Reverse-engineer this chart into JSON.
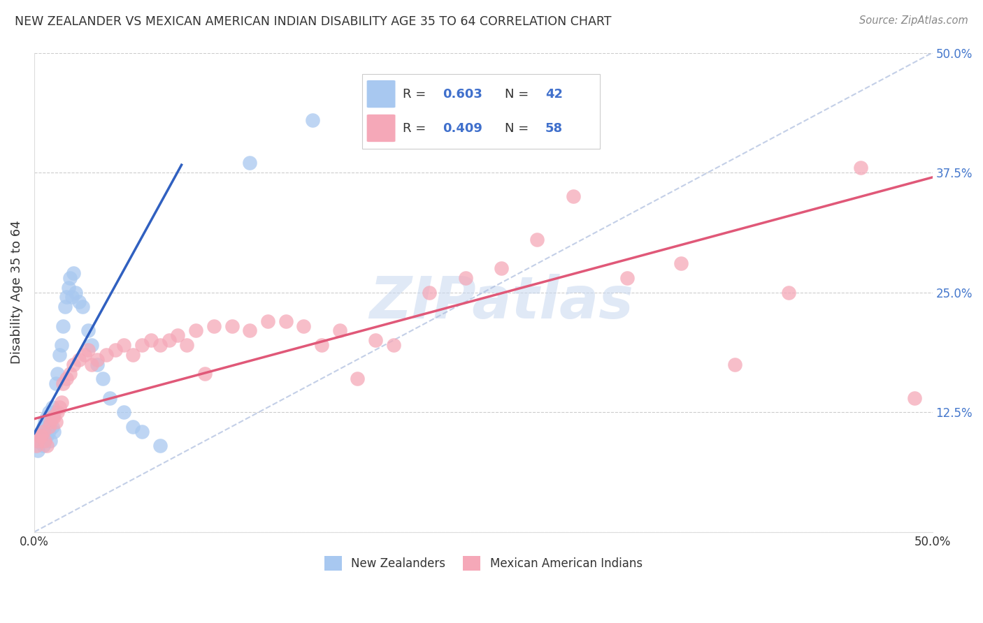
{
  "title": "NEW ZEALANDER VS MEXICAN AMERICAN INDIAN DISABILITY AGE 35 TO 64 CORRELATION CHART",
  "source": "Source: ZipAtlas.com",
  "ylabel": "Disability Age 35 to 64",
  "xlim": [
    0.0,
    0.5
  ],
  "ylim": [
    0.0,
    0.5
  ],
  "x_tick_vals": [
    0.0,
    0.1,
    0.2,
    0.3,
    0.4,
    0.5
  ],
  "x_tick_labels": [
    "0.0%",
    "",
    "",
    "",
    "",
    "50.0%"
  ],
  "y_tick_vals": [
    0.0,
    0.125,
    0.25,
    0.375,
    0.5
  ],
  "y_tick_labels": [
    "",
    "12.5%",
    "25.0%",
    "37.5%",
    "50.0%"
  ],
  "blue_R": 0.603,
  "blue_N": 42,
  "pink_R": 0.409,
  "pink_N": 58,
  "blue_color": "#A8C8F0",
  "pink_color": "#F5A8B8",
  "blue_line_color": "#3060C0",
  "pink_line_color": "#E05878",
  "diagonal_color": "#AABBDD",
  "watermark_color": "#C8D8F0",
  "legend_value_color": "#4070CC",
  "legend_text_color": "#333333",
  "title_color": "#333333",
  "label_color": "#333333",
  "right_tick_color": "#4477CC",
  "background_color": "#FFFFFF",
  "blue_x": [
    0.001,
    0.002,
    0.003,
    0.004,
    0.005,
    0.005,
    0.006,
    0.006,
    0.007,
    0.007,
    0.008,
    0.008,
    0.009,
    0.01,
    0.01,
    0.011,
    0.011,
    0.012,
    0.013,
    0.014,
    0.015,
    0.016,
    0.017,
    0.018,
    0.019,
    0.02,
    0.021,
    0.022,
    0.023,
    0.025,
    0.027,
    0.03,
    0.032,
    0.035,
    0.038,
    0.042,
    0.05,
    0.055,
    0.06,
    0.07,
    0.12,
    0.155
  ],
  "blue_y": [
    0.095,
    0.085,
    0.1,
    0.105,
    0.09,
    0.11,
    0.095,
    0.115,
    0.1,
    0.12,
    0.105,
    0.125,
    0.095,
    0.11,
    0.13,
    0.105,
    0.125,
    0.155,
    0.165,
    0.185,
    0.195,
    0.215,
    0.235,
    0.245,
    0.255,
    0.265,
    0.245,
    0.27,
    0.25,
    0.24,
    0.235,
    0.21,
    0.195,
    0.175,
    0.16,
    0.14,
    0.125,
    0.11,
    0.105,
    0.09,
    0.385,
    0.43
  ],
  "pink_x": [
    0.001,
    0.002,
    0.003,
    0.004,
    0.005,
    0.006,
    0.007,
    0.008,
    0.009,
    0.01,
    0.011,
    0.012,
    0.013,
    0.014,
    0.015,
    0.016,
    0.018,
    0.02,
    0.022,
    0.025,
    0.028,
    0.03,
    0.032,
    0.035,
    0.04,
    0.045,
    0.05,
    0.055,
    0.06,
    0.065,
    0.07,
    0.075,
    0.08,
    0.085,
    0.09,
    0.095,
    0.1,
    0.11,
    0.12,
    0.13,
    0.14,
    0.15,
    0.16,
    0.17,
    0.18,
    0.19,
    0.2,
    0.22,
    0.24,
    0.26,
    0.28,
    0.3,
    0.33,
    0.36,
    0.39,
    0.42,
    0.46,
    0.49
  ],
  "pink_y": [
    0.09,
    0.095,
    0.1,
    0.1,
    0.105,
    0.095,
    0.09,
    0.11,
    0.115,
    0.12,
    0.12,
    0.115,
    0.125,
    0.13,
    0.135,
    0.155,
    0.16,
    0.165,
    0.175,
    0.18,
    0.185,
    0.19,
    0.175,
    0.18,
    0.185,
    0.19,
    0.195,
    0.185,
    0.195,
    0.2,
    0.195,
    0.2,
    0.205,
    0.195,
    0.21,
    0.165,
    0.215,
    0.215,
    0.21,
    0.22,
    0.22,
    0.215,
    0.195,
    0.21,
    0.16,
    0.2,
    0.195,
    0.25,
    0.265,
    0.275,
    0.305,
    0.35,
    0.265,
    0.28,
    0.175,
    0.25,
    0.38,
    0.14
  ],
  "blue_line_x": [
    0.0,
    0.082
  ],
  "blue_line_y": [
    0.103,
    0.383
  ],
  "pink_line_x": [
    0.0,
    0.5
  ],
  "pink_line_y": [
    0.118,
    0.37
  ]
}
